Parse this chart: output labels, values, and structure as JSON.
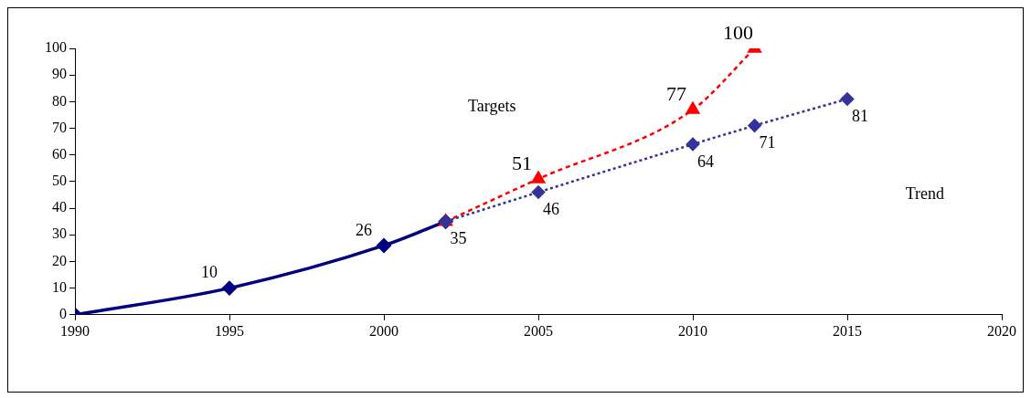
{
  "chart_data": {
    "type": "line",
    "xlim": [
      1990,
      2020
    ],
    "xticks": [
      1990,
      1995,
      2000,
      2005,
      2010,
      2015,
      2020
    ],
    "ylim": [
      0,
      100
    ],
    "yticks": [
      0,
      10,
      20,
      30,
      40,
      50,
      60,
      70,
      80,
      90,
      100
    ],
    "grid": false,
    "legend": false,
    "series": [
      {
        "color": "#000080",
        "x": [
          1990,
          1995,
          2000,
          2002
        ],
        "values": [
          0,
          10,
          26,
          35
        ],
        "value_labels": [
          null,
          "10",
          "26",
          null
        ],
        "marker": "diamond",
        "line_style": "solid"
      },
      {
        "color": "#ff0000",
        "x": [
          2002,
          2005,
          2010,
          2012
        ],
        "values": [
          35,
          51,
          77,
          100
        ],
        "value_labels": [
          null,
          "51",
          "77",
          "100"
        ],
        "marker": "triangle",
        "line_style": "dashed"
      },
      {
        "color": "#333399",
        "x": [
          2002,
          2005,
          2010,
          2012,
          2015
        ],
        "values": [
          35,
          46,
          64,
          71,
          81
        ],
        "value_labels": [
          "35",
          "46",
          "64",
          "71",
          "81"
        ],
        "marker": "diamond",
        "line_style": "dotted"
      }
    ],
    "annotations": [
      "Targets",
      "Trend"
    ]
  }
}
